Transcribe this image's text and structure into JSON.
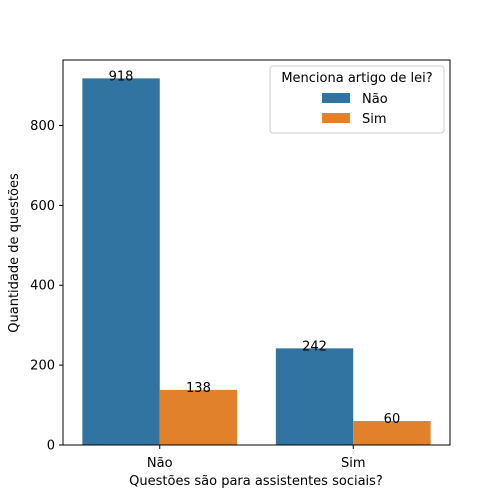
{
  "chart_data": {
    "type": "bar",
    "xlabel": "Questões são para assistentes sociais?",
    "ylabel": "Quantidade de questões",
    "categories": [
      "Não",
      "Sim"
    ],
    "ylim": [
      0,
      964
    ],
    "yticks": [
      0,
      200,
      400,
      600,
      800
    ],
    "grid": false,
    "series": [
      {
        "name": "Não",
        "color": "#3274a1",
        "values": [
          918,
          242
        ]
      },
      {
        "name": "Sim",
        "color": "#e1812c",
        "values": [
          138,
          60
        ]
      }
    ],
    "legend": {
      "title": "Menciona artigo de lei?",
      "placement": "top-right"
    }
  }
}
